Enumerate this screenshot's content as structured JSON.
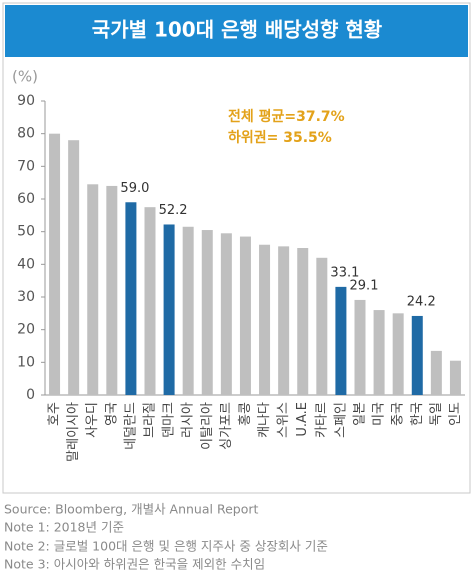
{
  "chart_data": {
    "type": "bar",
    "title": "국가별 100대 은행 배당성향 현황",
    "y_label": "(%)",
    "categories": [
      "호주",
      "말레이시아",
      "사우디",
      "영국",
      "네덜란드",
      "브라질",
      "덴마크",
      "러시아",
      "이탈리아",
      "싱가포르",
      "홍콩",
      "캐나다",
      "스위스",
      "U.A.E",
      "카타르",
      "스페인",
      "일본",
      "미국",
      "중국",
      "한국",
      "독일",
      "인도"
    ],
    "values": [
      80,
      78,
      64.5,
      64,
      59,
      57.5,
      52.2,
      51.5,
      50.5,
      49.5,
      48.5,
      46,
      45.5,
      45,
      42,
      33.1,
      29.1,
      26,
      25,
      24.2,
      13.5,
      10.5
    ],
    "value_labels": [
      null,
      null,
      null,
      null,
      "59.0",
      null,
      "52.2",
      null,
      null,
      null,
      null,
      null,
      null,
      null,
      null,
      "33.1",
      "29.1",
      null,
      null,
      "24.2",
      null,
      null
    ],
    "colors": [
      "#bfbfbf",
      "#bfbfbf",
      "#bfbfbf",
      "#bfbfbf",
      "#1f6aa5",
      "#bfbfbf",
      "#1f6aa5",
      "#bfbfbf",
      "#bfbfbf",
      "#bfbfbf",
      "#bfbfbf",
      "#bfbfbf",
      "#bfbfbf",
      "#bfbfbf",
      "#bfbfbf",
      "#1f6aa5",
      "#bfbfbf",
      "#bfbfbf",
      "#bfbfbf",
      "#1f6aa5",
      "#bfbfbf",
      "#bfbfbf"
    ],
    "ylim": [
      0,
      90
    ],
    "yticks": [
      0,
      10,
      20,
      30,
      40,
      50,
      60,
      70,
      80,
      90
    ],
    "annotations": [
      "전체 평균=37.7%",
      "하위권= 35.5%"
    ],
    "notes": [
      "Source: Bloomberg, 개별사 Annual Report",
      "Note 1: 2018년 기준",
      "Note 2: 글로벌 100대 은행 및 은행 지주사 중 상장회사 기준",
      "Note 3: 아시아와 하위권은 한국을 제외한 수치임"
    ]
  }
}
